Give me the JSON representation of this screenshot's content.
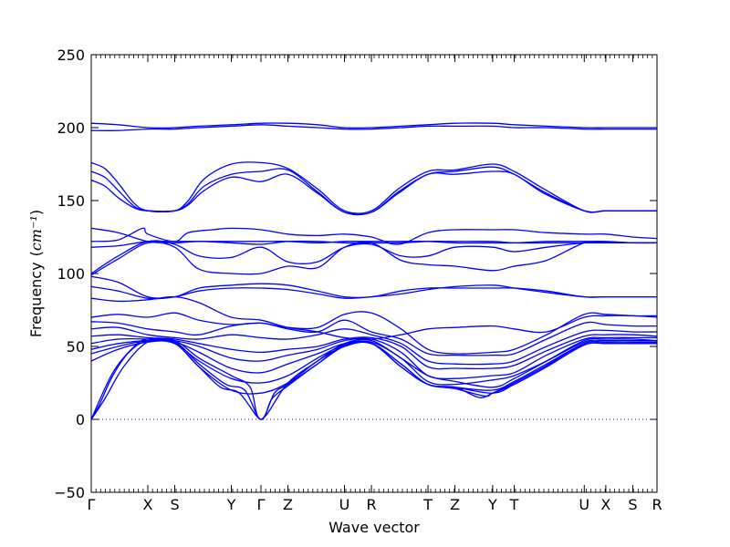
{
  "chart_data": {
    "type": "line",
    "xlabel": "Wave vector",
    "ylabel": "Frequency",
    "ylabel_unit": "cm⁻¹",
    "ylim": [
      -50,
      250
    ],
    "yticks": [
      -50,
      0,
      50,
      100,
      150,
      200,
      250
    ],
    "xlim": [
      0,
      21
    ],
    "x_labels": [
      {
        "label": "Γ",
        "x": 0
      },
      {
        "label": "X",
        "x": 2.1
      },
      {
        "label": "S",
        "x": 3.1
      },
      {
        "label": "Y",
        "x": 5.2
      },
      {
        "label": "Γ",
        "x": 6.3
      },
      {
        "label": "Z",
        "x": 7.3
      },
      {
        "label": "U",
        "x": 9.4
      },
      {
        "label": "R",
        "x": 10.4
      },
      {
        "label": "T",
        "x": 12.5
      },
      {
        "label": "Z",
        "x": 13.5
      },
      {
        "label": "Y",
        "x": 14.9
      },
      {
        "label": "T",
        "x": 15.7
      },
      {
        "label": "U",
        "x": 18.3
      },
      {
        "label": "X",
        "x": 19.1
      },
      {
        "label": "S",
        "x": 20.1
      },
      {
        "label": "R",
        "x": 21
      }
    ],
    "line_color": "#0000ff",
    "zero_line": {
      "y": 0,
      "style": "dotted"
    },
    "series": [
      {
        "x": [
          0,
          1,
          2.1,
          3.1,
          4,
          5.2,
          6.3,
          7.3,
          8.4,
          9.4,
          10.4,
          11.5,
          12.5,
          13.5,
          14.9,
          15.7,
          16.9,
          18.3,
          19.1,
          20.1,
          21
        ],
        "y": [
          203,
          202,
          200,
          200,
          201,
          202,
          203,
          203,
          202,
          200,
          200,
          201,
          202,
          203,
          203,
          202,
          201,
          200,
          200,
          200,
          200
        ]
      },
      {
        "x": [
          0,
          1,
          2.1,
          3.1,
          4,
          5.2,
          6.3,
          7.3,
          8.4,
          9.4,
          10.4,
          11.5,
          12.5,
          13.5,
          14.9,
          15.7,
          16.9,
          18.3,
          19.1,
          20.1,
          21
        ],
        "y": [
          198,
          198,
          199,
          199,
          200,
          201,
          202,
          201,
          200,
          199,
          199,
          200,
          201,
          201,
          201,
          200,
          200,
          199,
          199,
          199,
          199
        ]
      },
      {
        "x": [
          0,
          0.5,
          1,
          1.6,
          2.1,
          3.1,
          3.6,
          4.2,
          5.2,
          6.3,
          7.3,
          8.4,
          9.4,
          10.4,
          11.4,
          12.5,
          13.5,
          14.9,
          15.7,
          16.8,
          18.3,
          19.1,
          20.1,
          21
        ],
        "y": [
          176,
          172,
          162,
          148,
          143,
          143,
          150,
          165,
          175,
          176,
          172,
          158,
          143,
          143,
          158,
          170,
          171,
          175,
          170,
          158,
          143,
          143,
          143,
          143
        ]
      },
      {
        "x": [
          0,
          0.5,
          1,
          1.6,
          2.1,
          3.1,
          3.6,
          4.2,
          5.2,
          6.3,
          7.3,
          8.4,
          9.4,
          10.4,
          11.4,
          12.5,
          13.5,
          14.9,
          15.7,
          16.8,
          18.3,
          19.1,
          20.1,
          21
        ],
        "y": [
          170,
          166,
          157,
          146,
          143,
          143,
          148,
          160,
          168,
          170,
          171,
          156,
          142,
          142,
          156,
          168,
          170,
          173,
          168,
          156,
          143,
          143,
          143,
          143
        ]
      },
      {
        "x": [
          0,
          0.5,
          1,
          1.6,
          2.1,
          3.1,
          3.6,
          4.2,
          5.2,
          6.3,
          7.3,
          8.4,
          9.4,
          10.4,
          11.4,
          12.5,
          13.5,
          14.9,
          15.7,
          16.8,
          18.3,
          19.1,
          20.1,
          21
        ],
        "y": [
          164,
          160,
          152,
          145,
          143,
          143,
          147,
          157,
          166,
          163,
          168,
          155,
          142,
          142,
          155,
          168,
          168,
          170,
          168,
          155,
          143,
          143,
          143,
          143
        ]
      },
      {
        "x": [
          0,
          1,
          2.1,
          3.1,
          4,
          5.2,
          6.3,
          7.3,
          8.4,
          9.4,
          10.4,
          11.5,
          12.5,
          13.5,
          14.9,
          15.7,
          16.9,
          18.3,
          19.1,
          20.1,
          21
        ],
        "y": [
          131,
          128,
          122,
          121,
          122,
          121,
          120,
          122,
          122,
          121,
          121,
          121,
          122,
          122,
          122,
          121,
          121,
          121,
          121,
          121,
          121
        ]
      },
      {
        "x": [
          0,
          1,
          1.9,
          2.1,
          3.1,
          3.6,
          4.5,
          5.2,
          6.3,
          7.3,
          8.4,
          9.4,
          10.4,
          11.4,
          12.5,
          13.5,
          14.9,
          15.7,
          16.9,
          18.3,
          19.1,
          20.1,
          21
        ],
        "y": [
          122,
          123,
          131,
          127,
          122,
          128,
          130,
          131,
          130,
          127,
          126,
          127,
          125,
          120,
          128,
          130,
          130,
          130,
          128,
          127,
          127,
          125,
          124
        ]
      },
      {
        "x": [
          0,
          1,
          2.1,
          3.1,
          4,
          5.2,
          6.3,
          7.3,
          8.4,
          9.4,
          10.4,
          11.5,
          12.5,
          13.5,
          14.9,
          15.7,
          16.9,
          18.3,
          19.1,
          20.1,
          21
        ],
        "y": [
          118,
          119,
          122,
          122,
          122,
          122,
          122,
          122,
          121,
          122,
          122,
          122,
          122,
          121,
          121,
          121,
          122,
          122,
          122,
          121,
          121
        ]
      },
      {
        "x": [
          0,
          1,
          2.1,
          3.1,
          4,
          5.2,
          6.3,
          7.3,
          8.4,
          9.4,
          10.4,
          11.5,
          12.5,
          13.5,
          14.9,
          15.7,
          16.9,
          18.3,
          19.1,
          20.1,
          21
        ],
        "y": [
          100,
          112,
          122,
          120,
          112,
          111,
          118,
          108,
          108,
          118,
          120,
          112,
          112,
          118,
          118,
          115,
          118,
          121,
          121,
          121,
          121
        ]
      },
      {
        "x": [
          0,
          1,
          2.1,
          3.1,
          4,
          5.2,
          6.3,
          7.3,
          8.4,
          9.4,
          10.4,
          11.5,
          12.5,
          13.5,
          14.9,
          15.7,
          16.9,
          18.3,
          19.1,
          20.1,
          21
        ],
        "y": [
          99,
          110,
          121,
          118,
          103,
          100,
          100,
          105,
          104,
          118,
          121,
          109,
          106,
          105,
          102,
          105,
          109,
          121,
          121,
          121,
          121
        ]
      },
      {
        "x": [
          0,
          1,
          2.1,
          3.1,
          4,
          5.2,
          6.3,
          7.3,
          8.4,
          9.4,
          10.4,
          11.5,
          12.5,
          13.5,
          14.9,
          15.7,
          16.9,
          18.3,
          19.1,
          20.1,
          21
        ],
        "y": [
          98,
          94,
          84,
          84,
          90,
          92,
          93,
          92,
          88,
          84,
          84,
          88,
          90,
          90,
          90,
          90,
          88,
          84,
          84,
          84,
          84
        ]
      },
      {
        "x": [
          0,
          1,
          2.1,
          3.1,
          4,
          5.2,
          6.3,
          7.3,
          8.4,
          9.4,
          10.4,
          11.5,
          12.5,
          13.5,
          14.9,
          15.7,
          16.9,
          18.3,
          19.1,
          20.1,
          21
        ],
        "y": [
          91,
          88,
          83,
          84,
          88,
          90,
          90,
          89,
          86,
          83,
          84,
          86,
          89,
          91,
          92,
          90,
          87,
          84,
          84,
          84,
          84
        ]
      },
      {
        "x": [
          0,
          1,
          2.1,
          3.1,
          4,
          5.2,
          6.3,
          7.3,
          8.4,
          9.4,
          10.4,
          11.5,
          12.5,
          13.5,
          14.9,
          15.7,
          16.9,
          18.3,
          19.1,
          20.1,
          21
        ],
        "y": [
          83,
          81,
          82,
          84,
          80,
          70,
          68,
          63,
          60,
          56,
          55,
          58,
          62,
          63,
          64,
          62,
          60,
          70,
          71,
          71,
          70
        ]
      },
      {
        "x": [
          0,
          1,
          2.1,
          3.1,
          4,
          5.2,
          6.3,
          7.3,
          8.4,
          9.4,
          10.4,
          11.5,
          12.5,
          13.5,
          14.9,
          15.7,
          16.9,
          18.3,
          19.1,
          20.1,
          21
        ],
        "y": [
          70,
          72,
          70,
          73,
          68,
          65,
          66,
          63,
          63,
          72,
          73,
          62,
          48,
          45,
          46,
          48,
          58,
          72,
          72,
          71,
          71
        ]
      },
      {
        "x": [
          0,
          1,
          2.1,
          3.1,
          4,
          5.2,
          6.3,
          7.3,
          8.4,
          9.4,
          10.4,
          11.5,
          12.5,
          13.5,
          14.9,
          15.7,
          16.9,
          18.3,
          19.1,
          20.1,
          21
        ],
        "y": [
          67,
          66,
          62,
          60,
          58,
          64,
          66,
          62,
          60,
          68,
          60,
          55,
          45,
          44,
          44,
          45,
          55,
          66,
          65,
          64,
          64
        ]
      },
      {
        "x": [
          0,
          1,
          2.1,
          3.1,
          4,
          5.2,
          6.3,
          7.3,
          8.4,
          9.4,
          10.4,
          11.5,
          12.5,
          13.5,
          14.9,
          15.7,
          16.9,
          18.3,
          19.1,
          20.1,
          21
        ],
        "y": [
          62,
          63,
          58,
          56,
          55,
          58,
          56,
          55,
          58,
          62,
          58,
          52,
          40,
          38,
          38,
          40,
          50,
          60,
          61,
          60,
          60
        ]
      },
      {
        "x": [
          0,
          1,
          2.1,
          3.1,
          4,
          5.2,
          6.3,
          7.3,
          8.4,
          9.4,
          10.4,
          11.5,
          12.5,
          13.5,
          14.9,
          15.7,
          16.9,
          18.3,
          19.1,
          20.1,
          21
        ],
        "y": [
          57,
          58,
          56,
          55,
          52,
          48,
          46,
          48,
          50,
          55,
          56,
          50,
          36,
          35,
          35,
          37,
          47,
          57,
          58,
          58,
          57
        ]
      },
      {
        "x": [
          0,
          1,
          2.1,
          3.1,
          4,
          5.2,
          6.3,
          7.3,
          8.4,
          9.4,
          10.4,
          11.5,
          12.5,
          13.5,
          14.9,
          15.7,
          16.9,
          18.3,
          19.1,
          20.1,
          21
        ],
        "y": [
          52,
          55,
          55,
          54,
          50,
          42,
          40,
          44,
          48,
          54,
          55,
          46,
          30,
          28,
          30,
          32,
          44,
          55,
          56,
          56,
          56
        ]
      },
      {
        "x": [
          0,
          1,
          2.1,
          3.1,
          4,
          5.2,
          6.3,
          7.3,
          8.4,
          9.4,
          10.4,
          11.5,
          12.5,
          13.5,
          14.9,
          15.7,
          16.9,
          18.3,
          19.1,
          20.1,
          21
        ],
        "y": [
          48,
          52,
          54,
          53,
          46,
          35,
          32,
          38,
          45,
          52,
          53,
          42,
          26,
          24,
          27,
          30,
          40,
          53,
          54,
          54,
          54
        ]
      },
      {
        "x": [
          0,
          1,
          2.1,
          3.1,
          4,
          5.2,
          6.3,
          7.3,
          8.4,
          9.4,
          10.4,
          11.5,
          12.5,
          13.5,
          14.9,
          15.7,
          16.9,
          18.3,
          19.1,
          20.1,
          21
        ],
        "y": [
          45,
          50,
          54,
          52,
          40,
          28,
          25,
          30,
          42,
          51,
          52,
          38,
          24,
          22,
          20,
          26,
          38,
          52,
          53,
          53,
          53
        ]
      },
      {
        "x": [
          0,
          1,
          2.1,
          3.1,
          4,
          5.2,
          6.3,
          7.3,
          8.4,
          9.4,
          10.4,
          11.5,
          12.5,
          13.5,
          14.9,
          15.7,
          16.9,
          18.3,
          19.1,
          20.1,
          21
        ],
        "y": [
          40,
          48,
          53,
          52,
          36,
          20,
          18,
          25,
          40,
          50,
          52,
          36,
          24,
          22,
          18,
          24,
          36,
          51,
          52,
          52,
          52
        ]
      },
      {
        "x": [
          0,
          0.3,
          0.8,
          1.4,
          2.1,
          3.1,
          4,
          4.8,
          5.5,
          6.3,
          6.7,
          7.3,
          8.4,
          9.4,
          10.4,
          11.5,
          12.5,
          13.5,
          14.4,
          14.9,
          15.7,
          16.9,
          18.3,
          19.1,
          20.1,
          21
        ],
        "y": [
          0,
          10,
          30,
          46,
          54,
          52,
          36,
          22,
          18,
          0,
          14,
          23,
          38,
          50,
          52,
          38,
          24,
          22,
          15,
          18,
          24,
          36,
          51,
          52,
          52,
          52
        ]
      },
      {
        "x": [
          0,
          0.5,
          1.2,
          2.1,
          3.1,
          4,
          5,
          5.7,
          6.3,
          6.8,
          7.3,
          8.4,
          9.4,
          10.4,
          11.5,
          12.5,
          13.5,
          14.6,
          14.9,
          15.7,
          16.9,
          18.3,
          19.1,
          20.1,
          21
        ],
        "y": [
          0,
          14,
          36,
          53,
          53,
          38,
          24,
          20,
          0,
          18,
          24,
          38,
          51,
          52,
          36,
          24,
          21,
          16,
          18,
          25,
          37,
          52,
          53,
          53,
          53
        ]
      },
      {
        "x": [
          0,
          0.8,
          1.6,
          2.1,
          3.1,
          4,
          5.2,
          5.9,
          6.3,
          7.3,
          8.4,
          9.4,
          10.4,
          11.5,
          12.5,
          13.5,
          14.9,
          15.7,
          16.9,
          18.3,
          19.1,
          20.1,
          21
        ],
        "y": [
          0,
          32,
          50,
          55,
          54,
          42,
          30,
          22,
          0,
          25,
          40,
          52,
          54,
          42,
          30,
          26,
          22,
          28,
          40,
          54,
          55,
          55,
          54
        ]
      }
    ]
  }
}
